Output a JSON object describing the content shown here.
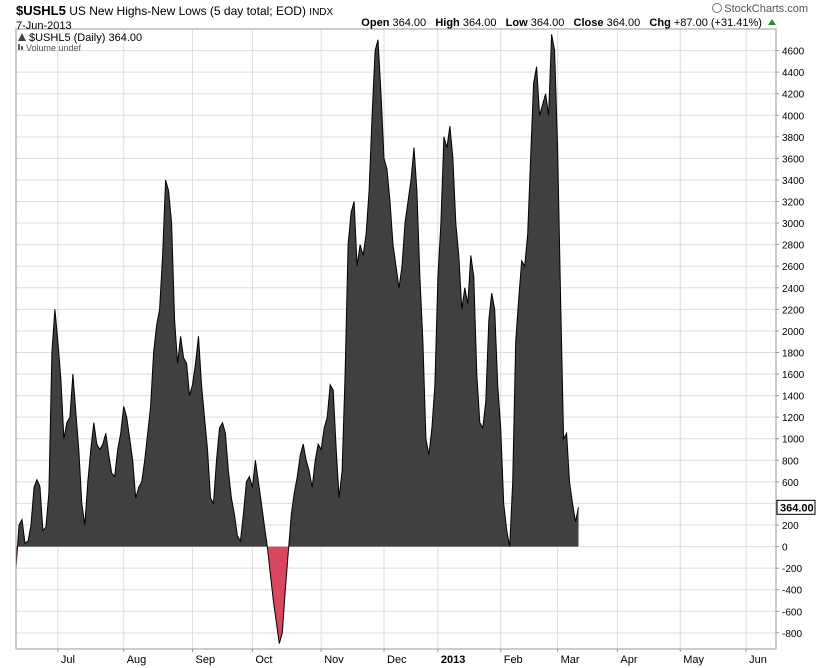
{
  "header": {
    "symbol": "$USHL5",
    "title": "US New Highs-New Lows (5 day total; EOD)",
    "exchange": "INDX",
    "date": "7-Jun-2013",
    "open_label": "Open",
    "open": "364.00",
    "high_label": "High",
    "high": "364.00",
    "low_label": "Low",
    "low": "364.00",
    "close_label": "Close",
    "close": "364.00",
    "chg_label": "Chg",
    "chg": "+87.00 (+31.41%)",
    "chg_direction_icon": "up-arrow-icon"
  },
  "logo": {
    "text": "StockCharts.com",
    "icon": "stockcharts-logo-icon"
  },
  "legend": {
    "series_label": "$USHL5 (Daily) 364.00",
    "volume_label": "Volume undef"
  },
  "colors": {
    "positive_fill": "#404040",
    "negative_fill": "#d9475f",
    "outline": "#000000",
    "gridline": "#dddddd",
    "frame": "#999999"
  },
  "chart_data": {
    "type": "area",
    "ylim": [
      -950,
      4800
    ],
    "y_ticks": [
      -800,
      -600,
      -400,
      -200,
      0,
      200,
      400,
      600,
      800,
      1000,
      1200,
      1400,
      1600,
      1800,
      2000,
      2200,
      2400,
      2600,
      2800,
      3000,
      3200,
      3400,
      3600,
      3800,
      4000,
      4200,
      4400,
      4600
    ],
    "last_value": 364.0,
    "last_value_label": "364.00",
    "x_range": [
      0,
      254
    ],
    "x_tick_labels": [
      {
        "label": "Jul",
        "x": 14,
        "bold": false
      },
      {
        "label": "Aug",
        "x": 36,
        "bold": false
      },
      {
        "label": "Sep",
        "x": 59,
        "bold": false
      },
      {
        "label": "Oct",
        "x": 79,
        "bold": false
      },
      {
        "label": "Nov",
        "x": 102,
        "bold": false
      },
      {
        "label": "Dec",
        "x": 123,
        "bold": false
      },
      {
        "label": "2013",
        "x": 141,
        "bold": true
      },
      {
        "label": "Feb",
        "x": 162,
        "bold": false
      },
      {
        "label": "Mar",
        "x": 181,
        "bold": false
      },
      {
        "label": "Apr",
        "x": 201,
        "bold": false
      },
      {
        "label": "May",
        "x": 222,
        "bold": false
      },
      {
        "label": "Jun",
        "x": 244,
        "bold": false
      }
    ],
    "series": [
      {
        "name": "$USHL5",
        "points": [
          [
            0,
            -200
          ],
          [
            1,
            200
          ],
          [
            2,
            250
          ],
          [
            3,
            30
          ],
          [
            4,
            50
          ],
          [
            5,
            200
          ],
          [
            6,
            550
          ],
          [
            7,
            620
          ],
          [
            8,
            560
          ],
          [
            9,
            150
          ],
          [
            10,
            180
          ],
          [
            11,
            500
          ],
          [
            12,
            1800
          ],
          [
            13,
            2200
          ],
          [
            14,
            1900
          ],
          [
            15,
            1550
          ],
          [
            16,
            1000
          ],
          [
            17,
            1150
          ],
          [
            18,
            1200
          ],
          [
            19,
            1600
          ],
          [
            20,
            1250
          ],
          [
            21,
            900
          ],
          [
            22,
            400
          ],
          [
            23,
            200
          ],
          [
            24,
            600
          ],
          [
            25,
            900
          ],
          [
            26,
            1150
          ],
          [
            27,
            950
          ],
          [
            28,
            900
          ],
          [
            29,
            950
          ],
          [
            30,
            1050
          ],
          [
            31,
            850
          ],
          [
            32,
            680
          ],
          [
            33,
            650
          ],
          [
            34,
            900
          ],
          [
            35,
            1050
          ],
          [
            36,
            1300
          ],
          [
            37,
            1200
          ],
          [
            38,
            1000
          ],
          [
            39,
            800
          ],
          [
            40,
            450
          ],
          [
            41,
            550
          ],
          [
            42,
            600
          ],
          [
            43,
            800
          ],
          [
            44,
            1050
          ],
          [
            45,
            1300
          ],
          [
            46,
            1800
          ],
          [
            47,
            2050
          ],
          [
            48,
            2200
          ],
          [
            49,
            2700
          ],
          [
            50,
            3400
          ],
          [
            51,
            3300
          ],
          [
            52,
            3000
          ],
          [
            53,
            2100
          ],
          [
            54,
            1700
          ],
          [
            55,
            1950
          ],
          [
            56,
            1750
          ],
          [
            57,
            1700
          ],
          [
            58,
            1400
          ],
          [
            59,
            1500
          ],
          [
            60,
            1700
          ],
          [
            61,
            1950
          ],
          [
            62,
            1500
          ],
          [
            63,
            1200
          ],
          [
            64,
            900
          ],
          [
            65,
            450
          ],
          [
            66,
            400
          ],
          [
            67,
            800
          ],
          [
            68,
            1100
          ],
          [
            69,
            1150
          ],
          [
            70,
            1050
          ],
          [
            71,
            700
          ],
          [
            72,
            450
          ],
          [
            73,
            300
          ],
          [
            74,
            100
          ],
          [
            75,
            50
          ],
          [
            76,
            300
          ],
          [
            77,
            600
          ],
          [
            78,
            650
          ],
          [
            79,
            550
          ],
          [
            80,
            800
          ],
          [
            81,
            600
          ],
          [
            82,
            400
          ],
          [
            83,
            200
          ],
          [
            84,
            0
          ],
          [
            85,
            -250
          ],
          [
            86,
            -500
          ],
          [
            87,
            -700
          ],
          [
            88,
            -900
          ],
          [
            89,
            -800
          ],
          [
            90,
            -400
          ],
          [
            91,
            -50
          ],
          [
            92,
            300
          ],
          [
            93,
            500
          ],
          [
            94,
            650
          ],
          [
            95,
            850
          ],
          [
            96,
            950
          ],
          [
            97,
            800
          ],
          [
            98,
            700
          ],
          [
            99,
            550
          ],
          [
            100,
            800
          ],
          [
            101,
            950
          ],
          [
            102,
            900
          ],
          [
            103,
            1100
          ],
          [
            104,
            1200
          ],
          [
            105,
            1500
          ],
          [
            106,
            1450
          ],
          [
            107,
            900
          ],
          [
            108,
            450
          ],
          [
            109,
            700
          ],
          [
            110,
            1600
          ],
          [
            111,
            2800
          ],
          [
            112,
            3100
          ],
          [
            113,
            3200
          ],
          [
            114,
            2600
          ],
          [
            115,
            2800
          ],
          [
            116,
            2700
          ],
          [
            117,
            2900
          ],
          [
            118,
            3300
          ],
          [
            119,
            4000
          ],
          [
            120,
            4600
          ],
          [
            121,
            4700
          ],
          [
            122,
            4200
          ],
          [
            123,
            3600
          ],
          [
            124,
            3500
          ],
          [
            125,
            3200
          ],
          [
            126,
            2800
          ],
          [
            127,
            2600
          ],
          [
            128,
            2400
          ],
          [
            129,
            2600
          ],
          [
            130,
            3000
          ],
          [
            131,
            3200
          ],
          [
            132,
            3400
          ],
          [
            133,
            3700
          ],
          [
            134,
            3300
          ],
          [
            135,
            2500
          ],
          [
            136,
            1900
          ],
          [
            137,
            1000
          ],
          [
            138,
            850
          ],
          [
            139,
            1100
          ],
          [
            140,
            1500
          ],
          [
            141,
            2500
          ],
          [
            142,
            3000
          ],
          [
            143,
            3800
          ],
          [
            144,
            3700
          ],
          [
            145,
            3900
          ],
          [
            146,
            3600
          ],
          [
            147,
            3000
          ],
          [
            148,
            2700
          ],
          [
            149,
            2200
          ],
          [
            150,
            2400
          ],
          [
            151,
            2250
          ],
          [
            152,
            2700
          ],
          [
            153,
            2500
          ],
          [
            154,
            1600
          ],
          [
            155,
            1150
          ],
          [
            156,
            1100
          ],
          [
            157,
            1350
          ],
          [
            158,
            2100
          ],
          [
            159,
            2350
          ],
          [
            160,
            2200
          ],
          [
            161,
            1500
          ],
          [
            162,
            1100
          ],
          [
            163,
            400
          ],
          [
            164,
            150
          ],
          [
            165,
            0
          ],
          [
            166,
            600
          ],
          [
            167,
            1900
          ],
          [
            168,
            2300
          ],
          [
            169,
            2650
          ],
          [
            170,
            2600
          ],
          [
            171,
            2900
          ],
          [
            172,
            3600
          ],
          [
            173,
            4300
          ],
          [
            174,
            4450
          ],
          [
            175,
            4000
          ],
          [
            176,
            4100
          ],
          [
            177,
            4200
          ],
          [
            178,
            4000
          ],
          [
            179,
            4750
          ],
          [
            180,
            4600
          ],
          [
            181,
            3700
          ],
          [
            182,
            2300
          ],
          [
            183,
            1000
          ],
          [
            184,
            1050
          ],
          [
            185,
            600
          ],
          [
            186,
            400
          ],
          [
            187,
            230
          ],
          [
            188,
            364
          ]
        ]
      }
    ]
  }
}
